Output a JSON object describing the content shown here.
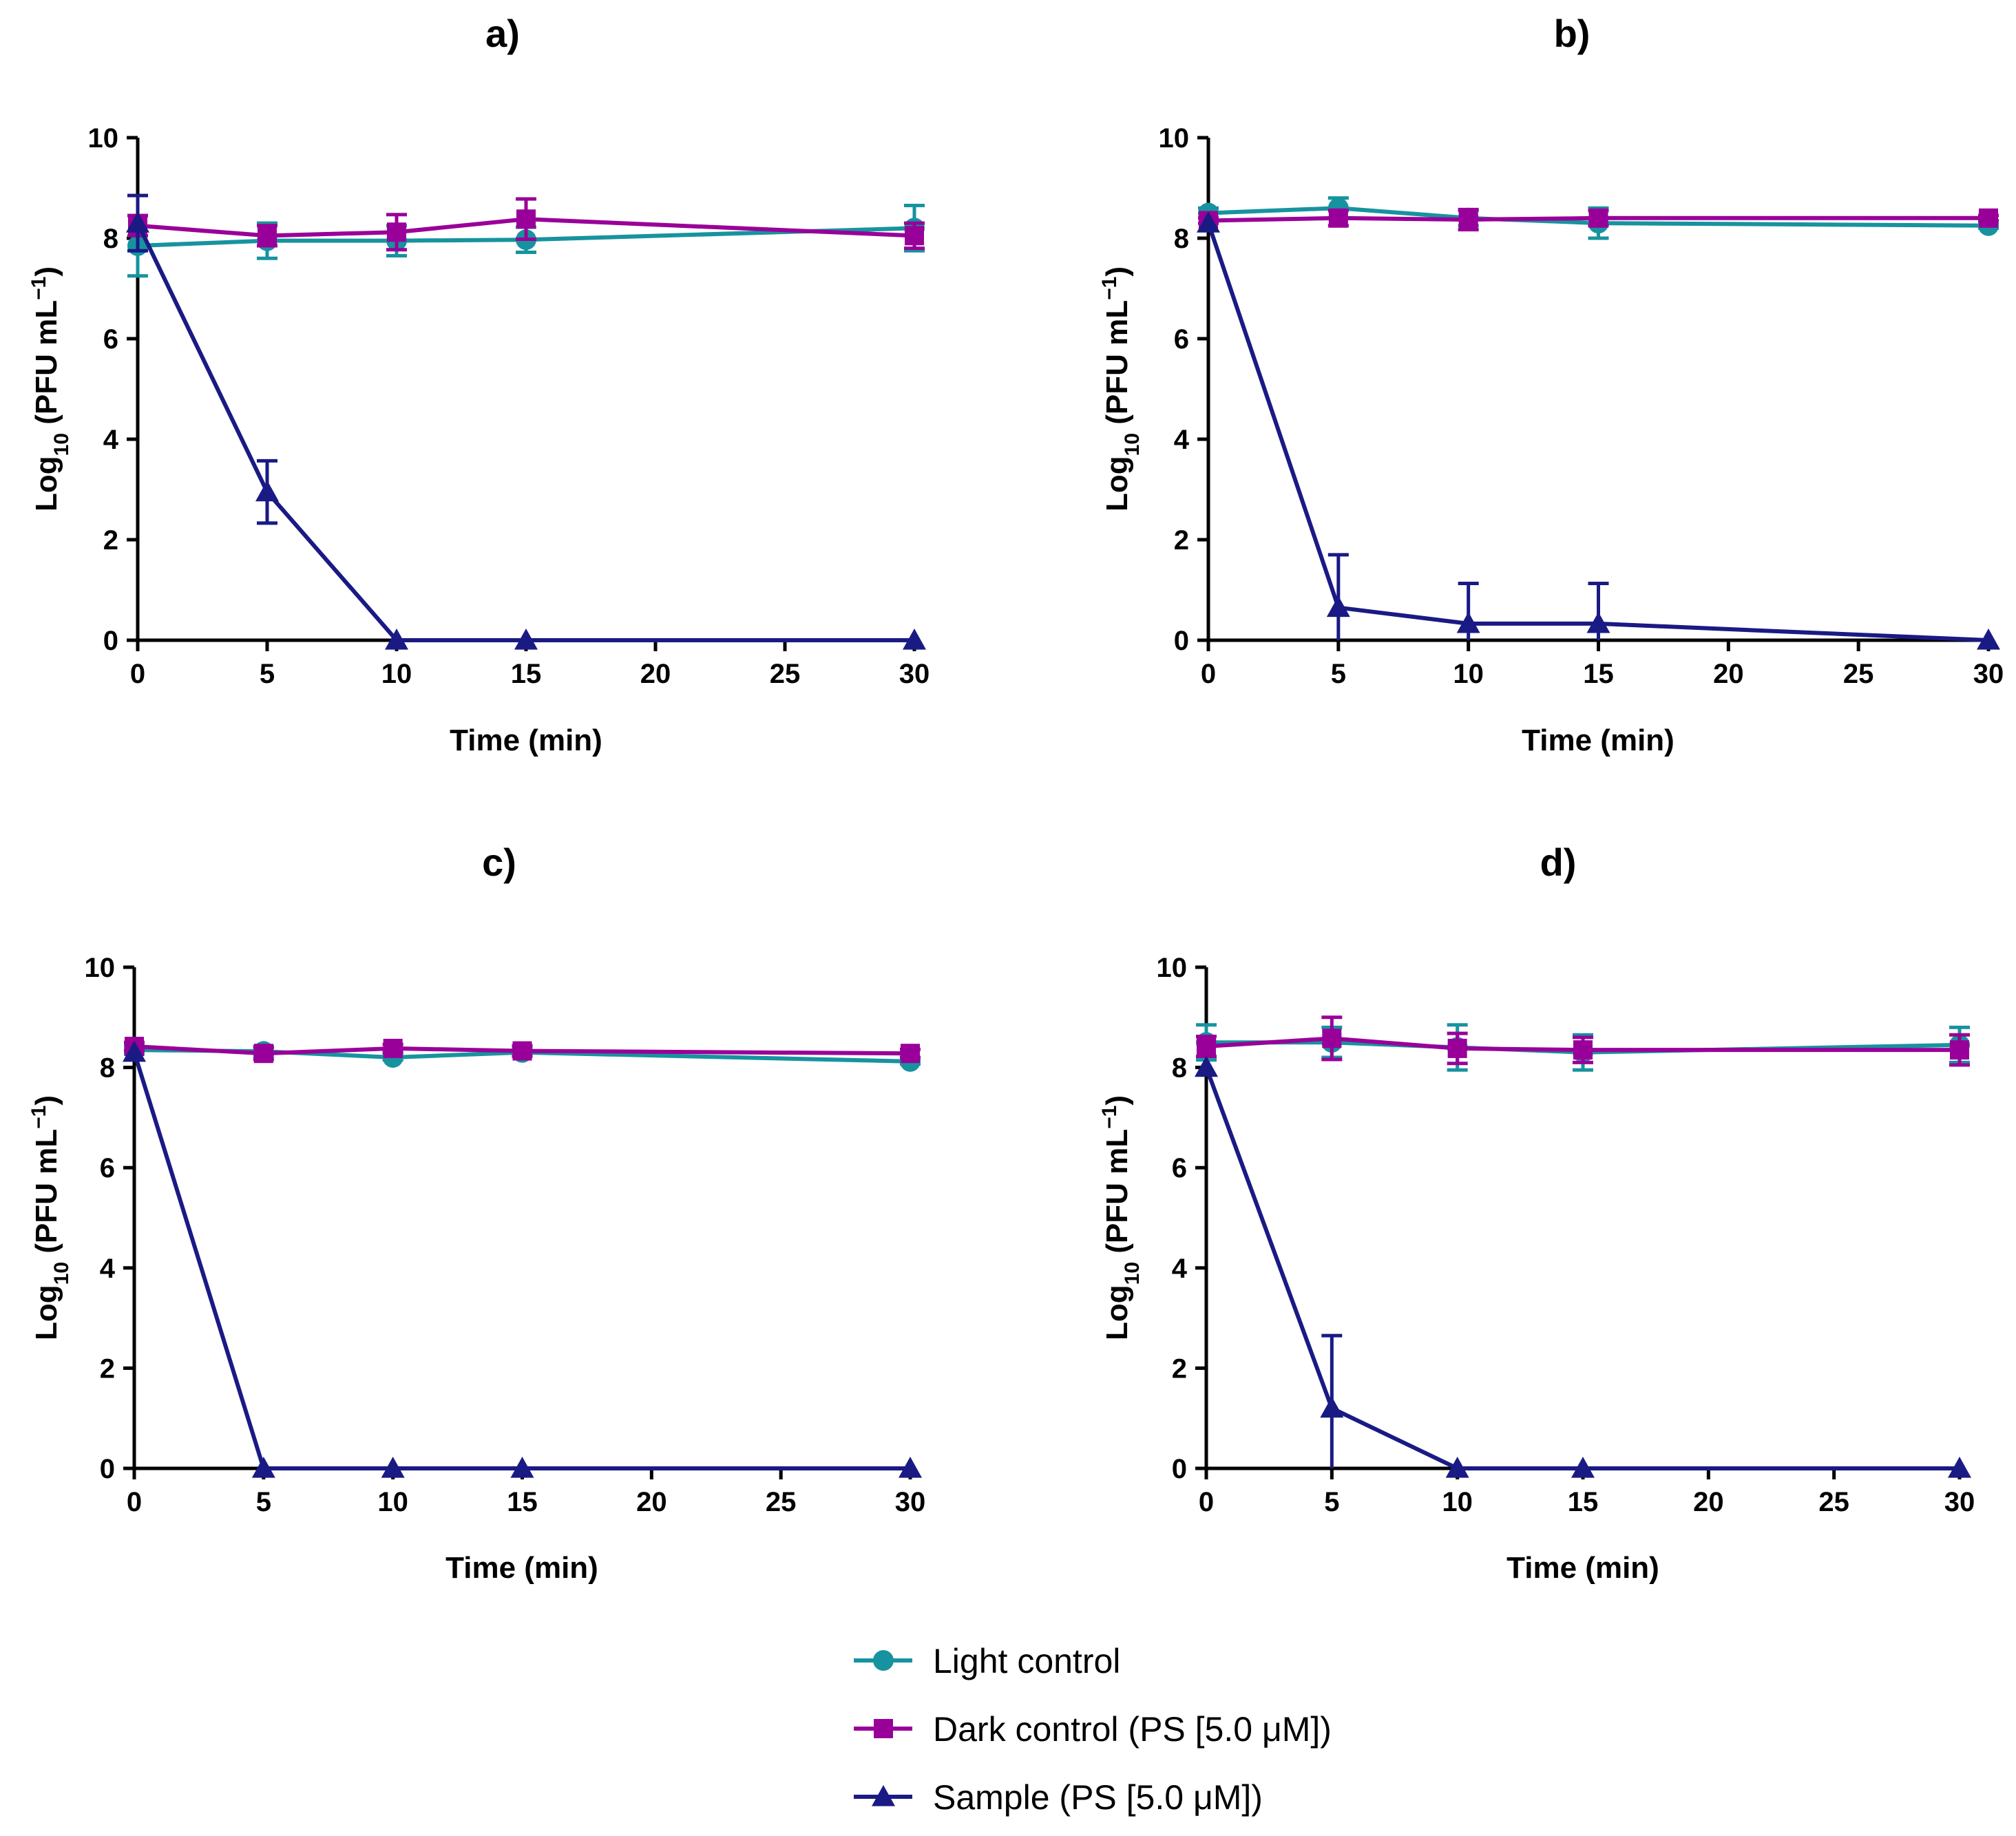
{
  "colors": {
    "light": "#17939F",
    "dark": "#990099",
    "sample": "#1A1A85"
  },
  "legend": [
    {
      "key": "light",
      "label": "Light control",
      "marker": "circle"
    },
    {
      "key": "dark",
      "label": "Dark control (PS [5.0 μM])",
      "marker": "square"
    },
    {
      "key": "sample",
      "label": "Sample (PS [5.0 μM])",
      "marker": "triangle"
    }
  ],
  "chart_data": [
    {
      "type": "line",
      "title": "a)",
      "xlabel": "Time (min)",
      "ylabel_parts": [
        "Log",
        "10",
        " (PFU mL",
        "−1",
        ")"
      ],
      "xlim": [
        0,
        30
      ],
      "ylim": [
        0,
        10
      ],
      "xticks": [
        0,
        5,
        10,
        15,
        20,
        25,
        30
      ],
      "yticks": [
        0,
        2,
        4,
        6,
        8,
        10
      ],
      "series": [
        {
          "key": "light",
          "name": "Light control",
          "x": [
            0,
            5,
            10,
            15,
            30
          ],
          "y": [
            7.85,
            7.95,
            7.95,
            7.97,
            8.2
          ],
          "err": [
            0.6,
            0.35,
            0.3,
            0.25,
            0.45
          ]
        },
        {
          "key": "dark",
          "name": "Dark control (PS [5.0 μM])",
          "x": [
            0,
            5,
            10,
            15,
            30
          ],
          "y": [
            8.25,
            8.05,
            8.12,
            8.38,
            8.05
          ],
          "err": [
            0.2,
            0.2,
            0.35,
            0.4,
            0.25
          ]
        },
        {
          "key": "sample",
          "name": "Sample (PS [5.0 μM])",
          "x": [
            0,
            5,
            10,
            15,
            30
          ],
          "y": [
            8.3,
            2.95,
            0,
            0,
            0
          ],
          "err": [
            0.55,
            0.62,
            0,
            0,
            0
          ]
        }
      ]
    },
    {
      "type": "line",
      "title": "b)",
      "xlabel": "Time (min)",
      "ylabel_parts": [
        "Log",
        "10",
        " (PFU mL",
        "−1",
        ")"
      ],
      "xlim": [
        0,
        30
      ],
      "ylim": [
        0,
        10
      ],
      "xticks": [
        0,
        5,
        10,
        15,
        20,
        25,
        30
      ],
      "yticks": [
        0,
        2,
        4,
        6,
        8,
        10
      ],
      "series": [
        {
          "key": "light",
          "name": "Light control",
          "x": [
            0,
            5,
            10,
            15,
            30
          ],
          "y": [
            8.5,
            8.6,
            8.4,
            8.3,
            8.25
          ],
          "err": [
            0.1,
            0.2,
            0.15,
            0.3,
            0.05
          ]
        },
        {
          "key": "dark",
          "name": "Dark control (PS [5.0 μM])",
          "x": [
            0,
            5,
            10,
            15,
            30
          ],
          "y": [
            8.35,
            8.4,
            8.37,
            8.4,
            8.4
          ],
          "err": [
            0.05,
            0.15,
            0.2,
            0.15,
            0.05
          ]
        },
        {
          "key": "sample",
          "name": "Sample (PS [5.0 μM])",
          "x": [
            0,
            5,
            10,
            15,
            30
          ],
          "y": [
            8.3,
            0.65,
            0.33,
            0.33,
            0
          ],
          "err": [
            0,
            1.05,
            0.8,
            0.8,
            0
          ]
        }
      ]
    },
    {
      "type": "line",
      "title": "c)",
      "xlabel": "Time (min)",
      "ylabel_parts": [
        "Log",
        "10",
        " (PFU mL",
        "−1",
        ")"
      ],
      "xlim": [
        0,
        30
      ],
      "ylim": [
        0,
        10
      ],
      "xticks": [
        0,
        5,
        10,
        15,
        20,
        25,
        30
      ],
      "yticks": [
        0,
        2,
        4,
        6,
        8,
        10
      ],
      "series": [
        {
          "key": "light",
          "name": "Light control",
          "x": [
            0,
            5,
            10,
            15,
            30
          ],
          "y": [
            8.35,
            8.32,
            8.2,
            8.3,
            8.12
          ],
          "err": [
            0.08,
            0.1,
            0.05,
            0.08,
            0.05
          ]
        },
        {
          "key": "dark",
          "name": "Dark control (PS [5.0 μM])",
          "x": [
            0,
            5,
            10,
            15,
            30
          ],
          "y": [
            8.42,
            8.28,
            8.38,
            8.33,
            8.28
          ],
          "err": [
            0.08,
            0.12,
            0.08,
            0.1,
            0.08
          ]
        },
        {
          "key": "sample",
          "name": "Sample (PS [5.0 μM])",
          "x": [
            0,
            5,
            10,
            15,
            30
          ],
          "y": [
            8.3,
            0,
            0,
            0,
            0
          ],
          "err": [
            0,
            0,
            0,
            0,
            0
          ]
        }
      ]
    },
    {
      "type": "line",
      "title": "d)",
      "xlabel": "Time (min)",
      "ylabel_parts": [
        "Log",
        "10",
        " (PFU mL",
        "−1",
        ")"
      ],
      "xlim": [
        0,
        30
      ],
      "ylim": [
        0,
        10
      ],
      "xticks": [
        0,
        5,
        10,
        15,
        20,
        25,
        30
      ],
      "yticks": [
        0,
        2,
        4,
        6,
        8,
        10
      ],
      "series": [
        {
          "key": "light",
          "name": "Light control",
          "x": [
            0,
            5,
            10,
            15,
            30
          ],
          "y": [
            8.5,
            8.5,
            8.4,
            8.3,
            8.45
          ],
          "err": [
            0.35,
            0.3,
            0.45,
            0.35,
            0.35
          ]
        },
        {
          "key": "dark",
          "name": "Dark control (PS [5.0 μM])",
          "x": [
            0,
            5,
            10,
            15,
            30
          ],
          "y": [
            8.42,
            8.58,
            8.38,
            8.35,
            8.35
          ],
          "err": [
            0.2,
            0.42,
            0.3,
            0.25,
            0.3
          ]
        },
        {
          "key": "sample",
          "name": "Sample (PS [5.0 μM])",
          "x": [
            0,
            5,
            10,
            15,
            30
          ],
          "y": [
            8.0,
            1.2,
            0,
            0,
            0
          ],
          "err": [
            0,
            1.45,
            0,
            0,
            0
          ]
        }
      ]
    }
  ]
}
